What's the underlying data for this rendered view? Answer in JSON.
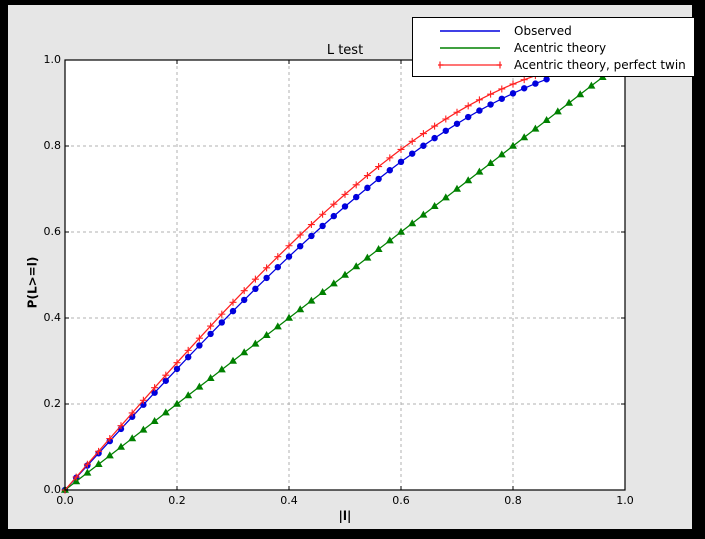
{
  "window": {
    "outer_background": "#000000",
    "figure_background": "#e6e6e6",
    "plot_background": "#ffffff",
    "grid_color": "#b0b0b0",
    "frame_color": "#000000"
  },
  "chart_data": {
    "type": "line",
    "title": "L test",
    "xlabel": "|l|",
    "ylabel": "P(L>=l)",
    "xlim": [
      0.0,
      1.0
    ],
    "ylim": [
      0.0,
      1.0
    ],
    "x_tick_labels": [
      "0.0",
      "0.2",
      "0.4",
      "0.6",
      "0.8",
      "1.0"
    ],
    "y_tick_labels": [
      "0.0",
      "0.2",
      "0.4",
      "0.6",
      "0.8",
      "1.0"
    ],
    "x_tick_values": [
      0,
      0.2,
      0.4,
      0.6,
      0.8,
      1.0
    ],
    "y_tick_values": [
      0,
      0.2,
      0.4,
      0.6,
      0.8,
      1.0
    ],
    "grid": true,
    "grid_style": "dashed",
    "legend_position": "upper right",
    "series": [
      {
        "name": "Observed",
        "color": "#0000dd",
        "marker": "circle",
        "x": [
          0,
          0.02,
          0.04,
          0.06,
          0.08,
          0.1,
          0.12,
          0.14,
          0.16,
          0.18,
          0.2,
          0.22,
          0.24,
          0.26,
          0.28,
          0.3,
          0.32,
          0.34,
          0.36,
          0.38,
          0.4,
          0.42,
          0.44,
          0.46,
          0.48,
          0.5,
          0.52,
          0.54,
          0.56,
          0.58,
          0.6,
          0.62,
          0.64,
          0.66,
          0.68,
          0.7,
          0.72,
          0.74,
          0.76,
          0.78,
          0.8,
          0.82,
          0.84,
          0.86
        ],
        "y": [
          0,
          0.0285,
          0.057,
          0.0854,
          0.1138,
          0.1421,
          0.1703,
          0.1983,
          0.2263,
          0.254,
          0.2816,
          0.309,
          0.3361,
          0.363,
          0.3897,
          0.416,
          0.4421,
          0.4678,
          0.4932,
          0.5182,
          0.5428,
          0.567,
          0.5908,
          0.6141,
          0.637,
          0.6594,
          0.6812,
          0.7026,
          0.7234,
          0.7436,
          0.7632,
          0.7822,
          0.8006,
          0.8183,
          0.8354,
          0.8517,
          0.8674,
          0.8823,
          0.8964,
          0.9098,
          0.9224,
          0.9342,
          0.9451,
          0.9552
        ]
      },
      {
        "name": "Acentric theory",
        "color": "#008000",
        "marker": "triangle",
        "x": [
          0,
          0.02,
          0.04,
          0.06,
          0.08,
          0.1,
          0.12,
          0.14,
          0.16,
          0.18,
          0.2,
          0.22,
          0.24,
          0.26,
          0.28,
          0.3,
          0.32,
          0.34,
          0.36,
          0.38,
          0.4,
          0.42,
          0.44,
          0.46,
          0.48,
          0.5,
          0.52,
          0.54,
          0.56,
          0.58,
          0.6,
          0.62,
          0.64,
          0.66,
          0.68,
          0.7,
          0.72,
          0.74,
          0.76,
          0.78,
          0.8,
          0.82,
          0.84,
          0.86,
          0.88,
          0.9,
          0.92,
          0.94,
          0.96
        ],
        "y": [
          0,
          0.02,
          0.04,
          0.06,
          0.08,
          0.1,
          0.12,
          0.14,
          0.16,
          0.18,
          0.2,
          0.22,
          0.24,
          0.26,
          0.28,
          0.3,
          0.32,
          0.34,
          0.36,
          0.38,
          0.4,
          0.42,
          0.44,
          0.46,
          0.48,
          0.5,
          0.52,
          0.54,
          0.56,
          0.58,
          0.6,
          0.62,
          0.64,
          0.66,
          0.68,
          0.7,
          0.72,
          0.74,
          0.76,
          0.78,
          0.8,
          0.82,
          0.84,
          0.86,
          0.88,
          0.9,
          0.92,
          0.94,
          0.96
        ]
      },
      {
        "name": "Acentric theory, perfect twin",
        "color": "#ff2020",
        "marker": "plus",
        "x": [
          0,
          0.02,
          0.04,
          0.06,
          0.08,
          0.1,
          0.12,
          0.14,
          0.16,
          0.18,
          0.2,
          0.22,
          0.24,
          0.26,
          0.28,
          0.3,
          0.32,
          0.34,
          0.36,
          0.38,
          0.4,
          0.42,
          0.44,
          0.46,
          0.48,
          0.5,
          0.52,
          0.54,
          0.56,
          0.58,
          0.6,
          0.62,
          0.64,
          0.66,
          0.68,
          0.7,
          0.72,
          0.74,
          0.76,
          0.78,
          0.8,
          0.82,
          0.84
        ],
        "y": [
          0,
          0.03,
          0.06,
          0.0899,
          0.1197,
          0.1495,
          0.1791,
          0.2086,
          0.238,
          0.2671,
          0.296,
          0.3247,
          0.3531,
          0.3812,
          0.409,
          0.4365,
          0.4636,
          0.4903,
          0.5167,
          0.5426,
          0.568,
          0.593,
          0.6174,
          0.6413,
          0.6647,
          0.6875,
          0.7097,
          0.7313,
          0.7522,
          0.7724,
          0.792,
          0.8108,
          0.8289,
          0.8463,
          0.8628,
          0.8785,
          0.8934,
          0.9074,
          0.9205,
          0.9327,
          0.944,
          0.9543,
          0.9636
        ]
      }
    ]
  }
}
